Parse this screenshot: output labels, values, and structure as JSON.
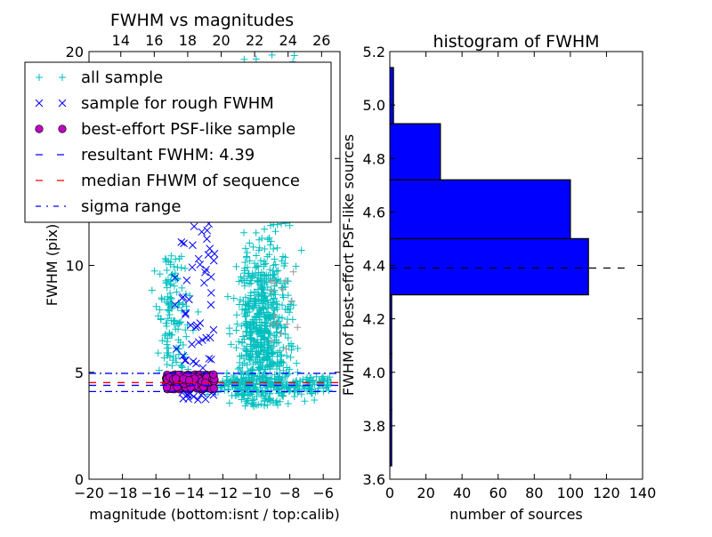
{
  "chart_data": [
    {
      "type": "scatter",
      "title": "FWHM vs magnitudes",
      "xlabel": "magnitude (bottom:isnt / top:calib)",
      "ylabel": "FWHM (pix)",
      "xlim": [
        -20,
        -5
      ],
      "ylim": [
        0,
        20
      ],
      "xticks": [
        "−20",
        "−18",
        "−16",
        "−14",
        "−12",
        "−10",
        "−8",
        "−6"
      ],
      "xtick_values": [
        -20,
        -18,
        -16,
        -14,
        -12,
        -10,
        -8,
        -6
      ],
      "top_xticks": [
        "14",
        "16",
        "18",
        "20",
        "22",
        "24",
        "26"
      ],
      "top_xtick_values": [
        14,
        16,
        18,
        20,
        22,
        24,
        26
      ],
      "top_offset": 32.1,
      "yticks": [
        "0",
        "5",
        "10",
        "15",
        "20"
      ],
      "ytick_values": [
        0,
        5,
        10,
        15,
        20
      ],
      "series": [
        {
          "name": "all sample",
          "marker": "+",
          "color": "#00bfbf"
        },
        {
          "name": "sample for rough FWHM",
          "marker": "x",
          "color": "#0000ff"
        },
        {
          "name": "best-effort PSF-like sample",
          "marker": "o",
          "color": "#bf00bf"
        }
      ],
      "lines": [
        {
          "name": "resultant FWHM: 4.39",
          "y": 4.39,
          "color": "#0000ff",
          "style": "dashed"
        },
        {
          "name": "median FHWM of sequence",
          "y": 4.52,
          "color": "#ff0000",
          "style": "dashed"
        },
        {
          "name": "sigma range",
          "y": [
            4.1,
            4.95
          ],
          "color": "#0000ff",
          "style": "dashdot"
        }
      ],
      "legend": {
        "placement": "top-left",
        "entries": [
          "all sample",
          "sample for rough FWHM",
          "best-effort PSF-like sample",
          "resultant FWHM: 4.39",
          "median FHWM of sequence",
          "sigma range"
        ]
      }
    },
    {
      "type": "bar",
      "orientation": "horizontal",
      "title": "histogram of FWHM",
      "xlabel": "number of sources",
      "ylabel": "FWHM of best-effort PSF-like sources",
      "xlim": [
        0,
        140
      ],
      "ylim": [
        3.6,
        5.2
      ],
      "xticks": [
        "0",
        "20",
        "40",
        "60",
        "80",
        "100",
        "120",
        "140"
      ],
      "xtick_values": [
        0,
        20,
        40,
        60,
        80,
        100,
        120,
        140
      ],
      "yticks": [
        "3.6",
        "3.8",
        "4.0",
        "4.2",
        "4.4",
        "4.6",
        "4.8",
        "5.0",
        "5.2"
      ],
      "ytick_values": [
        3.6,
        3.8,
        4.0,
        4.2,
        4.4,
        4.6,
        4.8,
        5.0,
        5.2
      ],
      "bin_edges": [
        3.65,
        3.86,
        4.07,
        4.29,
        4.5,
        4.72,
        4.93,
        5.14
      ],
      "values": [
        1,
        1,
        1,
        110,
        100,
        28,
        2
      ],
      "color": "#0000ff",
      "reference_line": {
        "y": 4.39,
        "x_end": 130,
        "style": "dashed",
        "color": "#000000"
      }
    }
  ]
}
